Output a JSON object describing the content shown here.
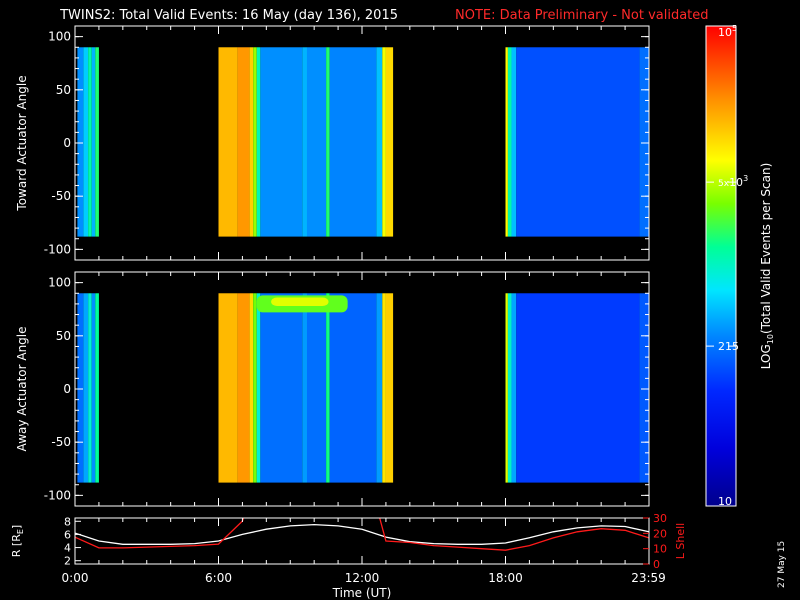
{
  "title": {
    "main": "TWINS2: Total Valid Events: 16 May (day 136), 2015",
    "note": "NOTE: Data Preliminary - Not validated"
  },
  "colors": {
    "note": "#ff2a2a",
    "background": "#000000",
    "axes": "#ffffff",
    "r_line": "#ffffff",
    "lshell_line": "#ff1a1a",
    "no_data": "#000000"
  },
  "colorbar": {
    "label": "LOG10(Total Valid Events per Scan)",
    "label_main": "LOG",
    "label_sub": "10",
    "label_rest": "(Total Valid Events per Scan)",
    "scale": "log",
    "range": [
      10,
      100000
    ],
    "ticks": [
      {
        "value": 100000,
        "base": "10",
        "exp": "5",
        "coef": ""
      },
      {
        "value": 5000,
        "base": "10",
        "exp": "3",
        "coef": "5x"
      },
      {
        "value": 215,
        "base": "215",
        "exp": "",
        "coef": ""
      },
      {
        "value": 10,
        "base": "10",
        "exp": "",
        "coef": ""
      }
    ]
  },
  "x_axis": {
    "label": "Time (UT)",
    "range_hours": [
      0,
      24
    ],
    "ticks": [
      {
        "hour": 0,
        "label": "0:00"
      },
      {
        "hour": 6,
        "label": "6:00"
      },
      {
        "hour": 12,
        "label": "12:00"
      },
      {
        "hour": 18,
        "label": "18:00"
      },
      {
        "hour": 23.98,
        "label": "23:59"
      }
    ]
  },
  "footer": {
    "date_stamp": "27 May 15"
  },
  "chart_data": [
    {
      "type": "heatmap",
      "name": "toward",
      "ylabel": "Toward Actuator Angle",
      "ylim": [
        -110,
        110
      ],
      "yticks": [
        100,
        50,
        0,
        -50,
        -100
      ],
      "angle_range": [
        -88,
        90
      ],
      "data_intervals_hours": [
        [
          0.1,
          1.0
        ],
        [
          6.0,
          13.3
        ],
        [
          18.0,
          24.0
        ]
      ],
      "bands": [
        {
          "start": 0.1,
          "end": 0.35,
          "log10": 2.45
        },
        {
          "start": 0.35,
          "end": 0.55,
          "log10": 2.7
        },
        {
          "start": 0.55,
          "end": 0.7,
          "log10": 3.1
        },
        {
          "start": 0.7,
          "end": 0.85,
          "log10": 2.6
        },
        {
          "start": 0.85,
          "end": 1.0,
          "log10": 3.25
        },
        {
          "start": 6.0,
          "end": 6.8,
          "log10": 4.2
        },
        {
          "start": 6.8,
          "end": 7.3,
          "log10": 4.35
        },
        {
          "start": 7.3,
          "end": 7.45,
          "log10": 4.1
        },
        {
          "start": 7.45,
          "end": 7.6,
          "log10": 3.6
        },
        {
          "start": 7.6,
          "end": 7.75,
          "log10": 3.05
        },
        {
          "start": 7.75,
          "end": 9.5,
          "log10": 2.45
        },
        {
          "start": 9.5,
          "end": 9.7,
          "log10": 2.6
        },
        {
          "start": 9.7,
          "end": 10.5,
          "log10": 2.45
        },
        {
          "start": 10.5,
          "end": 10.65,
          "log10": 3.25
        },
        {
          "start": 10.65,
          "end": 12.6,
          "log10": 2.4
        },
        {
          "start": 12.6,
          "end": 12.85,
          "log10": 2.65
        },
        {
          "start": 12.85,
          "end": 13.0,
          "log10": 3.85
        },
        {
          "start": 13.0,
          "end": 13.3,
          "log10": 4.05
        },
        {
          "start": 18.0,
          "end": 18.1,
          "log10": 3.9
        },
        {
          "start": 18.1,
          "end": 18.25,
          "log10": 3.1
        },
        {
          "start": 18.25,
          "end": 18.45,
          "log10": 2.65
        },
        {
          "start": 18.45,
          "end": 23.6,
          "log10": 2.15
        },
        {
          "start": 23.6,
          "end": 24.0,
          "log10": 2.3
        }
      ]
    },
    {
      "type": "heatmap",
      "name": "away",
      "ylabel": "Away Actuator Angle",
      "ylim": [
        -110,
        110
      ],
      "yticks": [
        100,
        50,
        0,
        -50,
        -100
      ],
      "angle_range": [
        -88,
        90
      ],
      "data_intervals_hours": [
        [
          0.1,
          1.0
        ],
        [
          6.0,
          13.3
        ],
        [
          18.0,
          24.0
        ]
      ],
      "bands": [
        {
          "start": 0.1,
          "end": 0.35,
          "log10": 2.3
        },
        {
          "start": 0.35,
          "end": 0.55,
          "log10": 2.55
        },
        {
          "start": 0.55,
          "end": 0.7,
          "log10": 2.95
        },
        {
          "start": 0.7,
          "end": 0.85,
          "log10": 2.45
        },
        {
          "start": 0.85,
          "end": 1.0,
          "log10": 3.15
        },
        {
          "start": 6.0,
          "end": 6.8,
          "log10": 4.2
        },
        {
          "start": 6.8,
          "end": 7.3,
          "log10": 4.35
        },
        {
          "start": 7.3,
          "end": 7.45,
          "log10": 4.05
        },
        {
          "start": 7.45,
          "end": 7.6,
          "log10": 3.5
        },
        {
          "start": 7.6,
          "end": 7.75,
          "log10": 2.95
        },
        {
          "start": 7.75,
          "end": 9.5,
          "log10": 2.3
        },
        {
          "start": 9.5,
          "end": 9.7,
          "log10": 2.5
        },
        {
          "start": 9.7,
          "end": 10.5,
          "log10": 2.3
        },
        {
          "start": 10.5,
          "end": 10.65,
          "log10": 3.2
        },
        {
          "start": 10.65,
          "end": 12.6,
          "log10": 2.25
        },
        {
          "start": 12.6,
          "end": 12.85,
          "log10": 2.5
        },
        {
          "start": 12.85,
          "end": 13.0,
          "log10": 4.0
        },
        {
          "start": 13.0,
          "end": 13.3,
          "log10": 4.1
        },
        {
          "start": 18.0,
          "end": 18.1,
          "log10": 3.8
        },
        {
          "start": 18.1,
          "end": 18.25,
          "log10": 3.0
        },
        {
          "start": 18.25,
          "end": 18.45,
          "log10": 2.55
        },
        {
          "start": 18.45,
          "end": 23.6,
          "log10": 2.05
        },
        {
          "start": 23.6,
          "end": 24.0,
          "log10": 2.2
        }
      ],
      "patches": [
        {
          "start": 7.6,
          "end": 11.4,
          "angle_low": 72,
          "angle_high": 88,
          "log10": 3.45
        },
        {
          "start": 8.2,
          "end": 10.6,
          "angle_low": 78,
          "angle_high": 86,
          "log10": 3.8
        }
      ]
    },
    {
      "type": "line",
      "name": "orbit",
      "x_hours": [
        0,
        1,
        2,
        3,
        4,
        5,
        6,
        7,
        8,
        9,
        10,
        11,
        12,
        13,
        14,
        15,
        16,
        17,
        18,
        19,
        20,
        21,
        22,
        23,
        24
      ],
      "left_axis": {
        "label": "R [RE]",
        "label_main": "R [R",
        "label_sub": "E",
        "label_end": "]",
        "ylim": [
          1.5,
          8.5
        ],
        "yticks": [
          2,
          4,
          6,
          8
        ]
      },
      "right_axis": {
        "label": "L Shell",
        "ylim": [
          0,
          30
        ],
        "yticks": [
          0,
          10,
          20,
          30
        ]
      },
      "series": [
        {
          "name": "R",
          "axis": "left",
          "values": [
            6.2,
            5.0,
            4.5,
            4.5,
            4.5,
            4.6,
            5.0,
            6.0,
            6.8,
            7.3,
            7.5,
            7.3,
            6.8,
            5.6,
            4.9,
            4.6,
            4.5,
            4.5,
            4.7,
            5.5,
            6.4,
            7.0,
            7.3,
            7.2,
            6.4
          ]
        },
        {
          "name": "L Shell",
          "axis": "right",
          "values": [
            17.5,
            10.5,
            10.5,
            11.0,
            11.5,
            12.0,
            13.0,
            28.0,
            null,
            null,
            null,
            null,
            null,
            15.0,
            14.0,
            12.0,
            11.0,
            10.0,
            9.0,
            12.0,
            17.0,
            21.0,
            23.0,
            22.0,
            17.0
          ]
        }
      ]
    }
  ]
}
